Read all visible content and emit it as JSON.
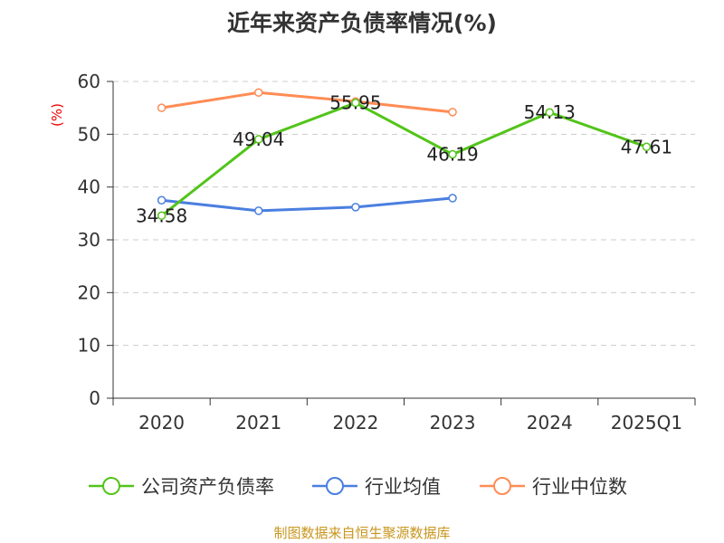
{
  "chart_data": {
    "type": "line",
    "title": "近年来资产负债率情况(%)",
    "ylabel": "(%)",
    "xlabel": "",
    "categories": [
      "2020",
      "2021",
      "2022",
      "2023",
      "2024",
      "2025Q1"
    ],
    "ylim": [
      0,
      60
    ],
    "yticks": [
      0,
      10,
      20,
      30,
      40,
      50,
      60
    ],
    "grid": true,
    "legend_position": "bottom",
    "series": [
      {
        "name": "公司资产负债率",
        "color": "#52c41a",
        "values": [
          34.58,
          49.04,
          55.95,
          46.19,
          54.13,
          47.61
        ],
        "labels": [
          "34.58",
          "49.04",
          "55.95",
          "46.19",
          "54.13",
          "47.61"
        ]
      },
      {
        "name": "行业均值",
        "color": "#4a7fe0",
        "values": [
          37.5,
          35.5,
          36.2,
          37.9,
          null,
          null
        ]
      },
      {
        "name": "行业中位数",
        "color": "#ff8c55",
        "values": [
          55.0,
          57.9,
          56.2,
          54.2,
          null,
          null
        ]
      }
    ]
  },
  "source": "制图数据来自恒生聚源数据库"
}
